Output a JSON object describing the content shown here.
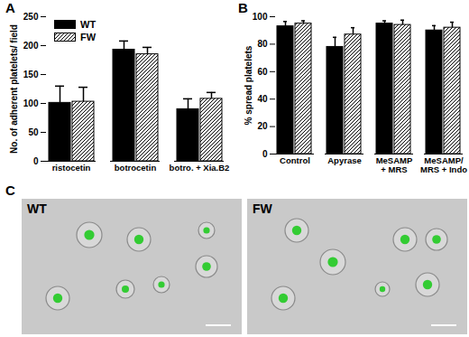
{
  "chart_data": [
    {
      "type": "bar",
      "title": "A",
      "y_label": "No. of adherent platelets/ field",
      "categories": [
        "ristocetin",
        "botrocetin",
        "botro. + Xia.B2"
      ],
      "series": [
        {
          "name": "WT",
          "color": "#000000",
          "values": [
            101,
            193,
            90
          ],
          "errors": [
            29,
            15,
            18
          ]
        },
        {
          "name": "FW",
          "color": "#000000",
          "values": [
            103,
            185,
            108
          ],
          "errors": [
            25,
            12,
            11
          ]
        }
      ],
      "ylim": [
        0,
        250
      ],
      "yticks": [
        0,
        50,
        100,
        150,
        200,
        250
      ],
      "legend": "top-left"
    },
    {
      "type": "bar",
      "title": "B",
      "y_label": "% spread platelets",
      "categories": [
        "Control",
        "Apyrase",
        "MeSAMP\n+ MRS",
        "MeSAMP/\nMRS + Indo"
      ],
      "series": [
        {
          "name": "WT",
          "color": "#000000",
          "values": [
            93,
            78,
            95,
            90
          ],
          "errors": [
            3.5,
            7,
            2,
            3.5
          ]
        },
        {
          "name": "FW",
          "color": "#000000",
          "values": [
            95,
            87,
            94,
            92
          ],
          "errors": [
            2,
            5,
            3.5,
            4
          ]
        }
      ],
      "ylim": [
        0,
        100
      ],
      "yticks": [
        0,
        20,
        40,
        60,
        80,
        100
      ],
      "legend": false
    }
  ],
  "panel_c": {
    "title": "C",
    "images": [
      {
        "label": "WT"
      },
      {
        "label": "FW"
      }
    ]
  }
}
